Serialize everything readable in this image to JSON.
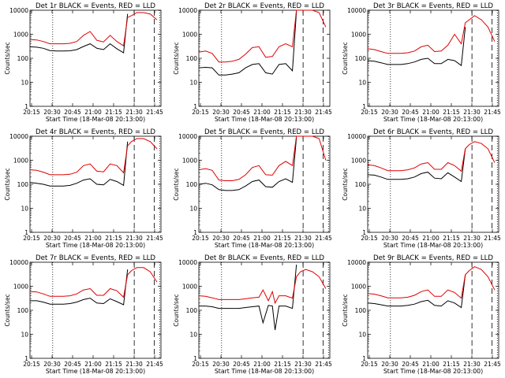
{
  "figure": {
    "xlabel": "Start Time (18-Mar-08 20:13:00)",
    "ylabel": "Counts/sec",
    "x_tick_labels": [
      "20:15",
      "20:30",
      "20:45",
      "21:00",
      "21:15",
      "21:30",
      "21:45"
    ],
    "y_tick_labels": [
      "1",
      "10",
      "100",
      "1000",
      "10000"
    ],
    "series_colors": {
      "events": "#000000",
      "lld": "#e00000"
    }
  },
  "chart_data": [
    {
      "type": "line",
      "title": "Det 1r BLACK = Events, RED = LLD",
      "xlabel": "Start Time (18-Mar-08 20:13:00)",
      "ylabel": "Counts/sec",
      "x_minutes": [
        0,
        5,
        10,
        15,
        20,
        25,
        30,
        35,
        40,
        45,
        50,
        55,
        60,
        65,
        70,
        73,
        76,
        80,
        85,
        90,
        95
      ],
      "xlim": [
        0,
        98
      ],
      "ylim": [
        1,
        10000
      ],
      "yscale": "log",
      "series": [
        {
          "values": [
            300,
            290,
            260,
            210,
            200,
            200,
            205,
            230,
            310,
            400,
            260,
            230,
            400,
            250,
            170,
            7000,
            null,
            null,
            null,
            null,
            null
          ]
        },
        {
          "values": [
            600,
            580,
            500,
            400,
            400,
            400,
            420,
            500,
            900,
            1300,
            560,
            480,
            900,
            500,
            330,
            5000,
            6000,
            8000,
            8000,
            7000,
            4000
          ]
        }
      ],
      "vlines_dotted": [
        17,
        97
      ],
      "vlines_dashed": [
        78,
        93
      ]
    },
    {
      "type": "line",
      "title": "Det 2r BLACK = Events, RED = LLD",
      "xlabel": "Start Time (18-Mar-08 20:13:00)",
      "ylabel": "Counts/sec",
      "x_minutes": [
        0,
        5,
        10,
        15,
        20,
        25,
        30,
        35,
        40,
        45,
        50,
        55,
        60,
        65,
        70,
        73,
        76,
        80,
        85,
        90,
        95
      ],
      "xlim": [
        0,
        98
      ],
      "ylim": [
        1,
        10000
      ],
      "yscale": "log",
      "series": [
        {
          "values": [
            40,
            42,
            40,
            20,
            20,
            22,
            25,
            40,
            55,
            60,
            25,
            22,
            55,
            60,
            30,
            9000,
            null,
            null,
            null,
            null,
            null
          ]
        },
        {
          "values": [
            180,
            200,
            160,
            70,
            70,
            75,
            90,
            150,
            280,
            300,
            110,
            120,
            300,
            400,
            300,
            10000,
            10000,
            10000,
            10000,
            8000,
            2000
          ]
        }
      ],
      "vlines_dotted": [
        17
      ],
      "vlines_dashed": [
        78,
        93
      ]
    },
    {
      "type": "line",
      "title": "Det 3r BLACK = Events, RED = LLD",
      "xlabel": "Start Time (18-Mar-08 20:13:00)",
      "ylabel": "Counts/sec",
      "x_minutes": [
        0,
        5,
        10,
        15,
        20,
        25,
        30,
        35,
        40,
        45,
        50,
        55,
        60,
        65,
        70,
        73,
        76,
        80,
        85,
        90,
        95
      ],
      "xlim": [
        0,
        98
      ],
      "ylim": [
        1,
        10000
      ],
      "yscale": "log",
      "series": [
        {
          "values": [
            80,
            75,
            65,
            55,
            55,
            55,
            60,
            70,
            90,
            100,
            60,
            60,
            90,
            80,
            50,
            2000,
            null,
            null,
            null,
            null,
            null
          ]
        },
        {
          "values": [
            250,
            230,
            190,
            160,
            160,
            160,
            170,
            200,
            300,
            350,
            190,
            200,
            350,
            1000,
            400,
            3000,
            4000,
            6000,
            4000,
            2000,
            500
          ]
        }
      ],
      "vlines_dotted": [
        17,
        97
      ],
      "vlines_dashed": [
        78,
        93
      ]
    },
    {
      "type": "line",
      "title": "Det 4r BLACK = Events, RED = LLD",
      "xlabel": "Start Time (18-Mar-08 20:13:00)",
      "ylabel": "Counts/sec",
      "x_minutes": [
        0,
        5,
        10,
        15,
        20,
        25,
        30,
        35,
        40,
        45,
        50,
        55,
        60,
        65,
        70,
        73,
        76,
        80,
        85,
        90,
        95
      ],
      "xlim": [
        0,
        98
      ],
      "ylim": [
        1,
        10000
      ],
      "yscale": "log",
      "series": [
        {
          "values": [
            120,
            110,
            100,
            85,
            85,
            85,
            90,
            110,
            150,
            170,
            100,
            95,
            160,
            130,
            90,
            6000,
            null,
            null,
            null,
            null,
            null
          ]
        },
        {
          "values": [
            400,
            380,
            320,
            250,
            250,
            250,
            260,
            320,
            600,
            700,
            350,
            330,
            700,
            600,
            300,
            4000,
            6000,
            8000,
            8000,
            6000,
            3000
          ]
        }
      ],
      "vlines_dotted": [
        17,
        97
      ],
      "vlines_dashed": [
        78,
        93
      ]
    },
    {
      "type": "line",
      "title": "Det 5r BLACK = Events, RED = LLD",
      "xlabel": "Start Time (18-Mar-08 20:13:00)",
      "ylabel": "Counts/sec",
      "x_minutes": [
        0,
        5,
        10,
        15,
        20,
        25,
        30,
        35,
        40,
        45,
        50,
        55,
        60,
        65,
        70,
        73,
        76,
        80,
        85,
        90,
        95
      ],
      "xlim": [
        0,
        98
      ],
      "ylim": [
        1,
        10000
      ],
      "yscale": "log",
      "series": [
        {
          "values": [
            100,
            110,
            95,
            60,
            55,
            55,
            60,
            85,
            130,
            150,
            80,
            75,
            130,
            170,
            120,
            9000,
            null,
            null,
            null,
            null,
            null
          ]
        },
        {
          "values": [
            400,
            450,
            380,
            150,
            140,
            140,
            160,
            250,
            500,
            600,
            250,
            240,
            600,
            900,
            600,
            10000,
            10000,
            10000,
            10000,
            8000,
            1000
          ]
        }
      ],
      "vlines_dotted": [
        17,
        97
      ],
      "vlines_dashed": [
        78,
        93
      ]
    },
    {
      "type": "line",
      "title": "Det 6r BLACK = Events, RED = LLD",
      "xlabel": "Start Time (18-Mar-08 20:13:00)",
      "ylabel": "Counts/sec",
      "x_minutes": [
        0,
        5,
        10,
        15,
        20,
        25,
        30,
        35,
        40,
        45,
        50,
        55,
        60,
        65,
        70,
        73,
        76,
        80,
        85,
        90,
        95
      ],
      "xlim": [
        0,
        98
      ],
      "ylim": [
        1,
        10000
      ],
      "yscale": "log",
      "series": [
        {
          "values": [
            250,
            240,
            200,
            160,
            160,
            160,
            170,
            200,
            280,
            320,
            180,
            170,
            300,
            200,
            130,
            3000,
            null,
            null,
            null,
            null,
            null
          ]
        },
        {
          "values": [
            650,
            600,
            480,
            370,
            370,
            370,
            400,
            480,
            700,
            800,
            420,
            420,
            800,
            600,
            350,
            3000,
            4500,
            6000,
            5000,
            3000,
            800
          ]
        }
      ],
      "vlines_dotted": [
        17,
        97
      ],
      "vlines_dashed": [
        78,
        93
      ]
    },
    {
      "type": "line",
      "title": "Det 7r BLACK = Events, RED = LLD",
      "xlabel": "Start Time (18-Mar-08 20:13:00)",
      "ylabel": "Counts/sec",
      "x_minutes": [
        0,
        5,
        10,
        15,
        20,
        25,
        30,
        35,
        40,
        45,
        50,
        55,
        60,
        65,
        70,
        73,
        76,
        80,
        85,
        90,
        95
      ],
      "xlim": [
        0,
        98
      ],
      "ylim": [
        1,
        10000
      ],
      "yscale": "log",
      "series": [
        {
          "values": [
            250,
            250,
            220,
            180,
            180,
            180,
            190,
            220,
            280,
            320,
            200,
            190,
            300,
            230,
            170,
            5000,
            null,
            null,
            null,
            null,
            null
          ]
        },
        {
          "values": [
            600,
            580,
            480,
            380,
            380,
            380,
            400,
            480,
            700,
            800,
            420,
            420,
            800,
            650,
            350,
            3000,
            4500,
            6000,
            6000,
            4000,
            1500
          ]
        }
      ],
      "vlines_dotted": [
        17,
        97
      ],
      "vlines_dashed": [
        78,
        93
      ]
    },
    {
      "type": "line",
      "title": "Det 8r BLACK = Events, RED = LLD",
      "xlabel": "Start Time (18-Mar-08 20:13:00)",
      "ylabel": "Counts/sec",
      "x_minutes": [
        0,
        5,
        10,
        15,
        20,
        25,
        30,
        35,
        40,
        45,
        48,
        52,
        55,
        57,
        60,
        65,
        70,
        73,
        76,
        80,
        85,
        90,
        95
      ],
      "xlim": [
        0,
        98
      ],
      "ylim": [
        1,
        10000
      ],
      "yscale": "log",
      "series": [
        {
          "values": [
            150,
            150,
            140,
            120,
            120,
            120,
            120,
            130,
            140,
            150,
            30,
            160,
            150,
            15,
            150,
            150,
            120,
            8000,
            null,
            null,
            null,
            null,
            null
          ]
        },
        {
          "values": [
            400,
            380,
            330,
            280,
            280,
            280,
            280,
            300,
            330,
            350,
            700,
            250,
            600,
            200,
            400,
            400,
            320,
            2500,
            4000,
            5000,
            4000,
            2500,
            800
          ]
        }
      ],
      "vlines_dotted": [
        17,
        97
      ],
      "vlines_dashed": [
        78,
        93
      ]
    },
    {
      "type": "line",
      "title": "Det 9r BLACK = Events, RED = LLD",
      "xlabel": "Start Time (18-Mar-08 20:13:00)",
      "ylabel": "Counts/sec",
      "x_minutes": [
        0,
        5,
        10,
        15,
        20,
        25,
        30,
        35,
        40,
        45,
        50,
        55,
        60,
        65,
        70,
        73,
        76,
        80,
        85,
        90,
        95
      ],
      "xlim": [
        0,
        98
      ],
      "ylim": [
        1,
        10000
      ],
      "yscale": "log",
      "series": [
        {
          "values": [
            200,
            190,
            170,
            150,
            150,
            150,
            160,
            180,
            230,
            260,
            160,
            150,
            250,
            200,
            130,
            3000,
            null,
            null,
            null,
            null,
            null
          ]
        },
        {
          "values": [
            500,
            470,
            400,
            330,
            330,
            330,
            350,
            420,
            600,
            700,
            380,
            380,
            700,
            550,
            320,
            3000,
            4500,
            6500,
            5000,
            2500,
            700
          ]
        }
      ],
      "vlines_dotted": [
        17,
        97
      ],
      "vlines_dashed": [
        78,
        93
      ]
    }
  ]
}
